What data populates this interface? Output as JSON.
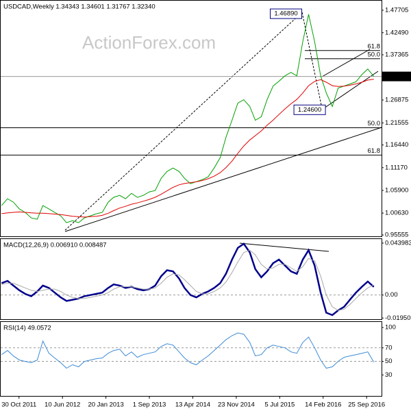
{
  "chart_data": [
    {
      "type": "line",
      "title": "USDCAD,Weekly  1.34343 1.34601 1.31767 1.32340",
      "watermark": "ActionForex.com",
      "x": [
        "2011-08-01",
        "2011-09-01",
        "2011-10-01",
        "2011-11-01",
        "2011-12-01",
        "2012-01-01",
        "2012-02-01",
        "2012-03-01",
        "2012-04-01",
        "2012-05-01",
        "2012-06-01",
        "2012-07-01",
        "2012-08-01",
        "2012-09-01",
        "2012-10-01",
        "2012-11-01",
        "2012-12-01",
        "2013-01-01",
        "2013-02-01",
        "2013-03-01",
        "2013-04-01",
        "2013-05-01",
        "2013-06-01",
        "2013-07-01",
        "2013-08-01",
        "2013-09-01",
        "2013-10-01",
        "2013-11-01",
        "2013-12-01",
        "2014-01-01",
        "2014-02-01",
        "2014-03-01",
        "2014-04-01",
        "2014-05-01",
        "2014-06-01",
        "2014-07-01",
        "2014-08-01",
        "2014-09-01",
        "2014-10-01",
        "2014-11-01",
        "2014-12-01",
        "2015-01-01",
        "2015-02-01",
        "2015-03-01",
        "2015-04-01",
        "2015-05-01",
        "2015-06-01",
        "2015-07-01",
        "2015-08-01",
        "2015-09-01",
        "2015-10-01",
        "2015-11-01",
        "2015-12-01",
        "2016-01-01",
        "2016-02-01",
        "2016-03-01",
        "2016-04-01",
        "2016-05-01",
        "2016-06-01",
        "2016-07-01",
        "2016-08-01",
        "2016-09-01",
        "2016-10-01",
        "2016-11-01"
      ],
      "xlim": [
        "2011-07-24",
        "2016-12-11"
      ],
      "series": [
        {
          "color": "#00a000",
          "values": [
            1.0237,
            1.0396,
            1.0317,
            1.0158,
            1.0079,
            0.9952,
            0.992,
            1.0237,
            1.0158,
            1.0079,
            1.0,
            0.9841,
            0.9888,
            0.9841,
            0.9952,
            1.0,
            1.0047,
            1.0079,
            1.0317,
            1.0428,
            1.0475,
            1.0396,
            1.0523,
            1.0428,
            1.0475,
            1.0555,
            1.0586,
            1.0871,
            1.103,
            1.1109,
            1.103,
            1.0871,
            1.0745,
            1.0792,
            1.084,
            1.0903,
            1.1109,
            1.1347,
            1.1822,
            1.2219,
            1.2615,
            1.2694,
            1.2536,
            1.2219,
            1.2298,
            1.2694,
            1.3011,
            1.3122,
            1.3249,
            1.3328,
            1.3249,
            1.4041,
            1.4675,
            1.4041,
            1.3249,
            1.2853,
            1.2536,
            1.2964,
            1.3011,
            1.3059,
            1.311,
            1.328,
            1.3407,
            1.3234
          ]
        },
        {
          "color": "#e00000",
          "values": [
            1.005,
            1.007,
            1.008,
            1.009,
            1.008,
            1.007,
            1.006,
            1.006,
            1.005,
            1.004,
            1.003,
            1.001,
            0.999,
            0.998,
            0.997,
            0.998,
            0.999,
            1.001,
            1.006,
            1.012,
            1.018,
            1.022,
            1.027,
            1.03,
            1.034,
            1.038,
            1.043,
            1.05,
            1.058,
            1.066,
            1.072,
            1.075,
            1.077,
            1.079,
            1.082,
            1.086,
            1.092,
            1.1,
            1.112,
            1.127,
            1.145,
            1.162,
            1.176,
            1.186,
            1.197,
            1.21,
            1.222,
            1.235,
            1.248,
            1.26,
            1.27,
            1.285,
            1.302,
            1.312,
            1.316,
            1.31,
            1.302,
            1.3,
            1.301,
            1.303,
            1.306,
            1.31,
            1.315,
            1.317
          ]
        }
      ],
      "ylim": [
        0.9524,
        1.4992
      ],
      "yticks": [
        1.47705,
        {
          "value": 1.4249,
          "label": "1.42490"
        },
        1.37365,
        1.26875,
        1.21555,
        {
          "value": 1.1644,
          "label": "1.16440"
        },
        {
          "value": 1.1117,
          "label": "1.11170"
        },
        {
          "value": 1.059,
          "label": "1.05900"
        },
        {
          "value": 1.0063,
          "label": "1.00630"
        },
        0.95555
      ],
      "current": {
        "value": 1.3234,
        "label": "1.32340"
      },
      "fib_levels": [
        {
          "label": "50.0",
          "value": 1.2044
        },
        {
          "label": "61.8",
          "value": 1.141
        }
      ],
      "recent_fib_levels": [
        {
          "label": "61.8",
          "value": 1.3835
        },
        {
          "label": "50.0",
          "value": 1.3645
        }
      ],
      "annotations": [
        {
          "label": "1.46890",
          "value": 1.4689,
          "x": "2015-12-01"
        },
        {
          "label": "1.24600",
          "value": 1.246,
          "x": "2016-04-01"
        }
      ]
    },
    {
      "type": "line",
      "title": "MACD(12,26,9) 0.006910 0.008487",
      "xlim": [
        "2011-07-24",
        "2016-12-11"
      ],
      "series": [
        {
          "color": "#00008b",
          "values": [
            0.01,
            0.012,
            0.008,
            0.004,
            0.001,
            -0.001,
            0.003,
            0.008,
            0.006,
            0.002,
            -0.002,
            -0.005,
            -0.004,
            -0.003,
            -0.001,
            0.0,
            0.001,
            0.002,
            0.006,
            0.009,
            0.008,
            0.006,
            0.007,
            0.005,
            0.004,
            0.005,
            0.008,
            0.016,
            0.021,
            0.02,
            0.014,
            0.006,
            0.0,
            -0.002,
            0.001,
            0.003,
            0.006,
            0.01,
            0.018,
            0.03,
            0.04,
            0.0434,
            0.036,
            0.022,
            0.015,
            0.02,
            0.027,
            0.03,
            0.025,
            0.02,
            0.018,
            0.03,
            0.038,
            0.025,
            0.002,
            -0.015,
            -0.017,
            -0.013,
            -0.01,
            -0.004,
            0.002,
            0.007,
            0.0114,
            0.00691
          ]
        },
        {
          "color": "#a8a8a8",
          "values": [
            0.009,
            0.01,
            0.01,
            0.008,
            0.006,
            0.004,
            0.003,
            0.004,
            0.005,
            0.005,
            0.003,
            0.0,
            -0.002,
            -0.003,
            -0.003,
            -0.002,
            -0.001,
            0.0,
            0.002,
            0.005,
            0.007,
            0.007,
            0.007,
            0.006,
            0.005,
            0.005,
            0.006,
            0.01,
            0.015,
            0.018,
            0.017,
            0.013,
            0.008,
            0.003,
            0.001,
            0.001,
            0.003,
            0.006,
            0.011,
            0.019,
            0.028,
            0.036,
            0.038,
            0.034,
            0.026,
            0.022,
            0.023,
            0.026,
            0.026,
            0.023,
            0.02,
            0.024,
            0.031,
            0.029,
            0.016,
            0.0,
            -0.01,
            -0.013,
            -0.012,
            -0.008,
            -0.003,
            0.002,
            0.006,
            0.008487
          ]
        }
      ],
      "ylim": [
        -0.0205,
        0.0474
      ],
      "yticks": [
        0.043983,
        {
          "value": 0,
          "label": "0.00"
        },
        -0.019501
      ],
      "grid": true
    },
    {
      "type": "line",
      "title": "RSI(14) 49.0572",
      "xlim": [
        "2011-07-24",
        "2016-12-11"
      ],
      "series": [
        {
          "color": "#3d8ad6",
          "values": [
            60,
            66,
            58,
            52,
            50,
            48,
            52,
            80,
            62,
            55,
            48,
            40,
            45,
            42,
            50,
            52,
            54,
            55,
            62,
            66,
            68,
            58,
            64,
            56,
            60,
            62,
            64,
            72,
            76,
            74,
            64,
            55,
            48,
            45,
            52,
            58,
            66,
            74,
            82,
            88,
            92,
            90,
            78,
            58,
            60,
            70,
            74,
            72,
            70,
            64,
            62,
            78,
            86,
            70,
            52,
            40,
            42,
            50,
            56,
            58,
            60,
            62,
            64,
            49.0572
          ]
        }
      ],
      "ylim": [
        -1,
        108.2
      ],
      "yticks": [
        100,
        70,
        50,
        30
      ],
      "grid": true,
      "xticks": [
        {
          "value": "2011-10-30",
          "label": "30 Oct 2011"
        },
        {
          "value": "2012-06-10",
          "label": "10 Jun 2012"
        },
        {
          "value": "2013-01-20",
          "label": "20 Jan 2013"
        },
        {
          "value": "2013-09-01",
          "label": "1 Sep 2013"
        },
        {
          "value": "2014-04-13",
          "label": "13 Apr 2014"
        },
        {
          "value": "2014-11-23",
          "label": "23 Nov 2014"
        },
        {
          "value": "2015-07-05",
          "label": "5 Jul 2015"
        },
        {
          "value": "2016-02-14",
          "label": "14 Feb 2016"
        },
        {
          "value": "2016-09-25",
          "label": "25 Sep 2016"
        }
      ]
    }
  ]
}
